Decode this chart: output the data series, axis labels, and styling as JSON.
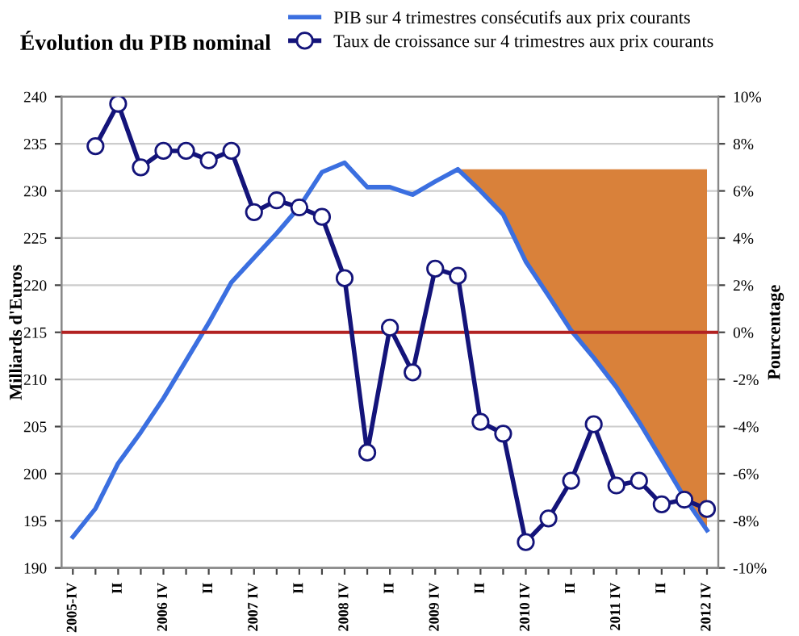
{
  "chart_data": {
    "type": "line",
    "title": "Évolution du PIB nominal",
    "ylabel": "Milliards d'Euros",
    "y2label": "Pourcentage",
    "categories": [
      "2005-IV",
      null,
      "II",
      null,
      "2006 IV",
      null,
      "II",
      null,
      "2007 IV",
      null,
      "II",
      null,
      "2008 IV",
      null,
      "II",
      null,
      "2009 IV",
      null,
      "II",
      null,
      "2010 IV",
      null,
      "II",
      null,
      "2011 IV",
      null,
      "II",
      null,
      "2012 IV"
    ],
    "series": [
      {
        "type": "area",
        "color": "#d9813a",
        "values": [
          null,
          null,
          null,
          null,
          null,
          null,
          null,
          null,
          null,
          null,
          null,
          null,
          null,
          null,
          null,
          null,
          null,
          232.3,
          232.3,
          232.3,
          232.3,
          232.3,
          232.3,
          232.3,
          232.3,
          232.3,
          232.3,
          232.3,
          232.3
        ]
      },
      {
        "name": "PIB sur 4 trimestres consécutifs aux prix courants",
        "color": "#3b6fe0",
        "marker": "none",
        "values": [
          193.3,
          196.3,
          201.1,
          204.4,
          208,
          212,
          216,
          220.3,
          222.9,
          225.5,
          228.3,
          232,
          233,
          230.4,
          230.4,
          229.6,
          231,
          232.3,
          230,
          227.5,
          222.5,
          218.9,
          215.2,
          212.3,
          209.2,
          205.5,
          201.5,
          197.5,
          194
        ]
      },
      {
        "name": "Taux de croissance sur 4 trimestres aux prix courants",
        "axis": "y2",
        "color": "#14147a",
        "marker": "circle",
        "values": [
          null,
          7.9,
          9.7,
          7.0,
          7.7,
          7.7,
          7.3,
          7.7,
          5.1,
          5.6,
          5.3,
          4.9,
          2.3,
          -5.1,
          0.2,
          -1.7,
          2.7,
          2.4,
          -3.8,
          -4.3,
          -8.9,
          -7.9,
          -6.3,
          -3.9,
          -6.5,
          -6.3,
          -7.3,
          -7.1,
          -7.5
        ]
      }
    ],
    "ylim": [
      190,
      240
    ],
    "yticks": [
      190,
      195,
      200,
      205,
      210,
      215,
      220,
      225,
      230,
      235,
      240
    ],
    "y2lim": [
      -10,
      10
    ],
    "y2ticks": [
      {
        "value": -10,
        "label": "-10%"
      },
      {
        "value": -8,
        "label": "-8%"
      },
      {
        "value": -6,
        "label": "-6%"
      },
      {
        "value": -4,
        "label": "-4%"
      },
      {
        "value": -2,
        "label": "-2%"
      },
      {
        "value": 0,
        "label": "0%"
      },
      {
        "value": 2,
        "label": "2%"
      },
      {
        "value": 4,
        "label": "4%"
      },
      {
        "value": 6,
        "label": "6%"
      },
      {
        "value": 8,
        "label": "8%"
      },
      {
        "value": 10,
        "label": "10%"
      }
    ],
    "ref_lines": [
      {
        "axis": "y2",
        "value": 0,
        "label": null,
        "color": "#b22222"
      }
    ],
    "grid": "y",
    "legend": "top",
    "line_style": "solid"
  }
}
